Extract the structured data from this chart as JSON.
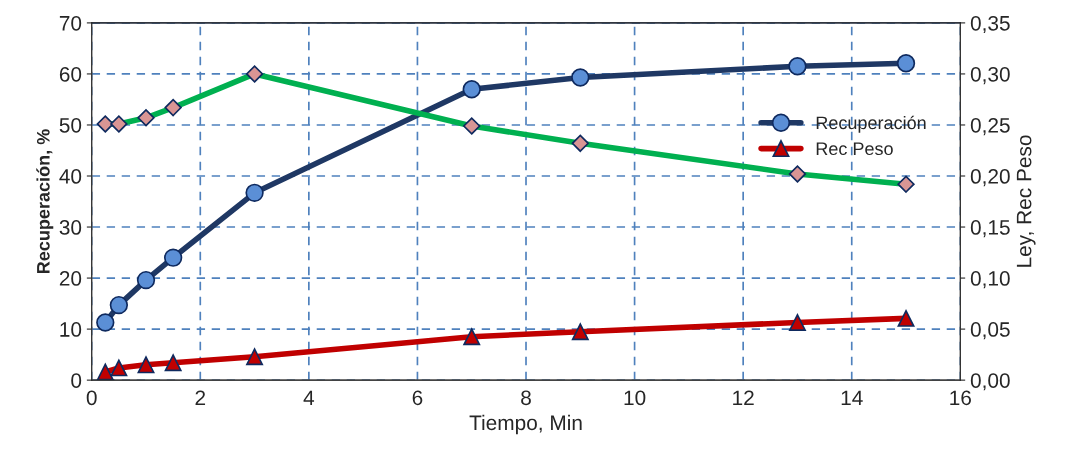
{
  "chart_data": {
    "type": "line",
    "xlabel": "Tiempo, Min",
    "ylabel": "Recuperación, %",
    "y2label": "Ley, Rec Peso",
    "xlim": [
      0,
      16
    ],
    "xticks": [
      0,
      2,
      4,
      6,
      8,
      10,
      12,
      14,
      16
    ],
    "ylim": [
      0,
      70
    ],
    "yticks": [
      0,
      10,
      20,
      30,
      40,
      50,
      60,
      70
    ],
    "y2lim": [
      0,
      0.35
    ],
    "y2ticks": [
      {
        "value": 0,
        "label": "0,00"
      },
      {
        "value": 0.05,
        "label": "0,05"
      },
      {
        "value": 0.1,
        "label": "0,10"
      },
      {
        "value": 0.15,
        "label": "0,15"
      },
      {
        "value": 0.2,
        "label": "0,20"
      },
      {
        "value": 0.25,
        "label": "0,25"
      },
      {
        "value": 0.3,
        "label": "0,30"
      },
      {
        "value": 0.35,
        "label": "0,35"
      }
    ],
    "x": [
      0.25,
      0.5,
      1,
      1.5,
      3,
      7,
      9,
      13,
      15
    ],
    "series": [
      {
        "name": "Recuperación",
        "color": "#1f3864",
        "marker": "circle",
        "values": [
          11.3,
          14.7,
          19.6,
          24.0,
          36.7,
          57.0,
          59.3,
          61.5,
          62.1
        ]
      },
      {
        "name": "Rec Peso",
        "color": "#c00000",
        "marker": "triangle",
        "values": [
          1.6,
          2.4,
          3.0,
          3.4,
          4.6,
          8.5,
          9.5,
          11.3,
          12.1
        ]
      },
      {
        "color": "#00b050",
        "marker": "diamond",
        "axis": "y2",
        "values": [
          0.251,
          0.251,
          0.257,
          0.267,
          0.3,
          0.249,
          0.232,
          0.202,
          0.192
        ]
      }
    ],
    "grid": true,
    "legend": "right"
  }
}
